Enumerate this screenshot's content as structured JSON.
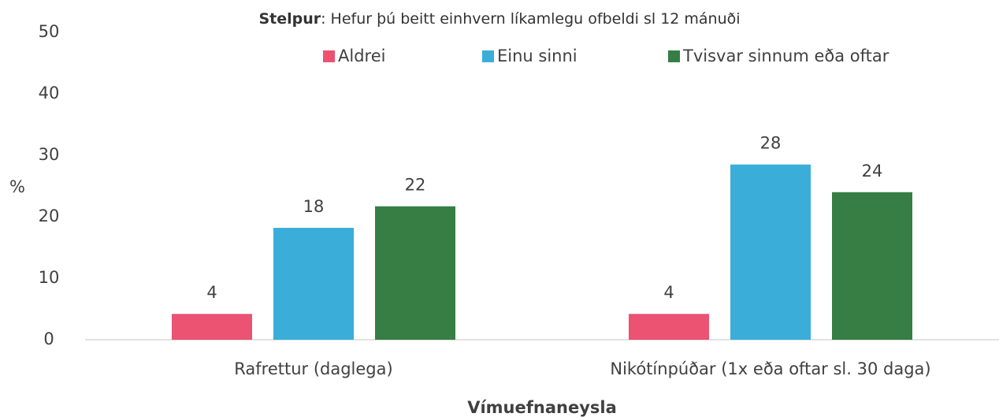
{
  "chart_data": {
    "type": "bar",
    "title_emphasis": "Stelpur",
    "title": ": Hefur þú beitt einhvern líkamlegu ofbeldi sl 12 mánuði",
    "xlabel": "Vímuefnaneysla",
    "ylabel": "%",
    "categories": [
      "Rafrettur (daglega)",
      "Nikótínpúðar (1x eða oftar sl. 30 daga)"
    ],
    "series": [
      {
        "name": "Aldrei",
        "color": "#ec5272",
        "values": [
          4.2,
          4.2
        ],
        "value_labels": [
          "4",
          "4"
        ]
      },
      {
        "name": "Einu sinni",
        "color": "#3aaed8",
        "values": [
          18.2,
          28.5
        ],
        "value_labels": [
          "18",
          "28"
        ]
      },
      {
        "name": "Tvisvar sinnum eða oftar",
        "color": "#367e44",
        "values": [
          21.7,
          24.0
        ],
        "value_labels": [
          "22",
          "24"
        ]
      }
    ],
    "ylim": [
      0,
      50
    ],
    "yticks": [
      0,
      10,
      20,
      30,
      40,
      50
    ],
    "grid": false,
    "legend": "top"
  }
}
